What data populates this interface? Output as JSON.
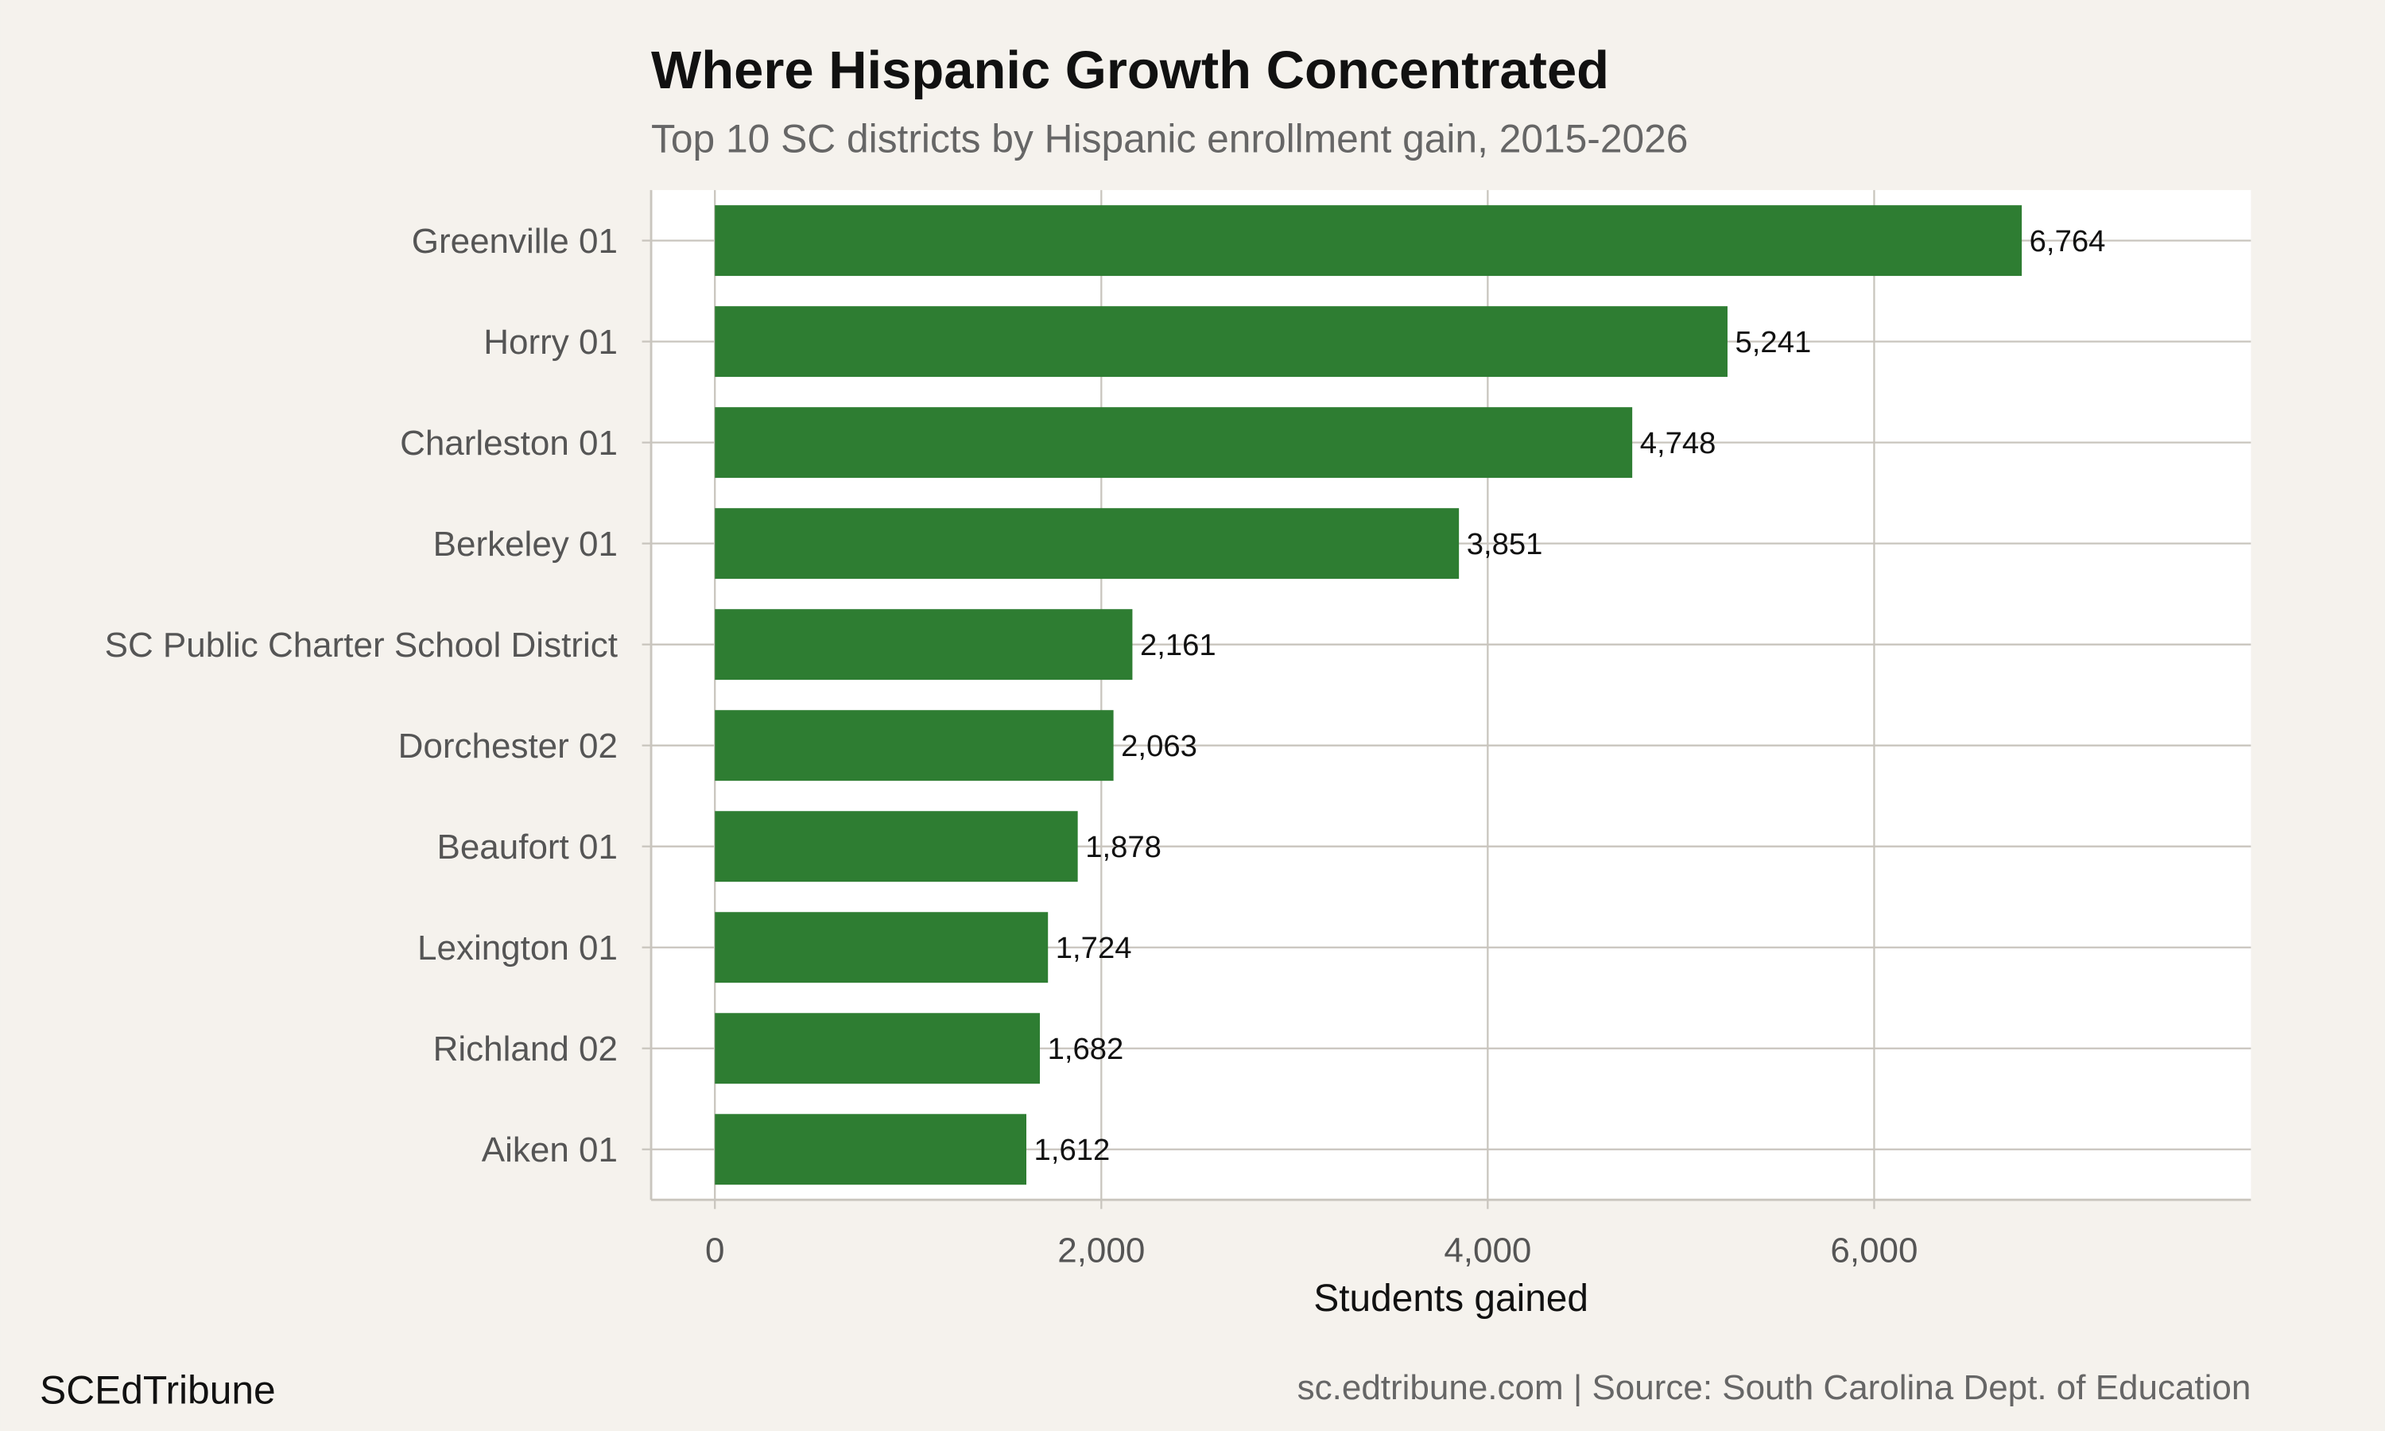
{
  "chart_data": {
    "type": "bar",
    "orientation": "horizontal",
    "title": "Where Hispanic Growth Concentrated",
    "subtitle": "Top 10 SC districts by Hispanic enrollment gain, 2015-2026",
    "xlabel": "Students gained",
    "ylabel": "",
    "categories": [
      "Greenville 01",
      "Horry 01",
      "Charleston 01",
      "Berkeley 01",
      "SC Public Charter School District",
      "Dorchester 02",
      "Beaufort 01",
      "Lexington 01",
      "Richland 02",
      "Aiken 01"
    ],
    "values": [
      6764,
      5241,
      4748,
      3851,
      2161,
      2063,
      1878,
      1724,
      1682,
      1612
    ],
    "value_labels": [
      "6,764",
      "5,241",
      "4,748",
      "3,851",
      "2,161",
      "2,063",
      "1,878",
      "1,724",
      "1,682",
      "1,612"
    ],
    "xticks": [
      0,
      2000,
      4000,
      6000
    ],
    "xtick_labels": [
      "0",
      "2,000",
      "4,000",
      "6,000"
    ],
    "xlim": [
      -330,
      7950
    ],
    "grid": true,
    "bar_color": "#2e7d32",
    "background_color": "#f5f2ed",
    "panel_color": "#ffffff",
    "grid_color": "#c9c5be"
  },
  "footer": {
    "brand": "SCEdTribune",
    "source": "sc.edtribune.com | Source: South Carolina Dept. of Education"
  }
}
